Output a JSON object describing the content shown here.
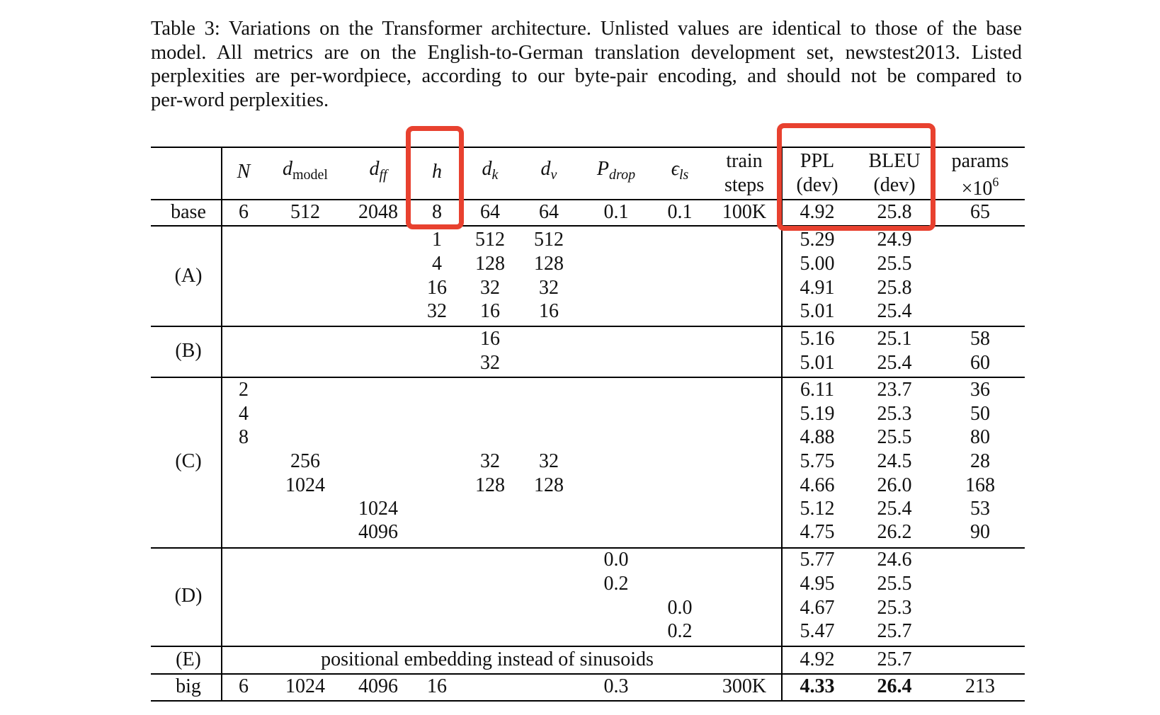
{
  "caption": {
    "line1": "Table 3: Variations on the Transformer architecture. Unlisted values are identical to those of the base",
    "line2": "model. All metrics are on the English-to-German translation development set, newstest2013. Listed",
    "line3": "perplexities are per-wordpiece, according to our byte-pair encoding, and should not be compared to",
    "line4": "per-word perplexities."
  },
  "header": {
    "N": "N",
    "d_model_main": "d",
    "d_model_sub": "model",
    "d_ff_main": "d",
    "d_ff_sub": "ff",
    "h": "h",
    "d_k_main": "d",
    "d_k_sub": "k",
    "d_v_main": "d",
    "d_v_sub": "v",
    "p_drop_main": "P",
    "p_drop_sub": "drop",
    "eps_main": "ϵ",
    "eps_sub": "ls",
    "train_line1": "train",
    "train_line2": "steps",
    "ppl_line1": "PPL",
    "ppl_line2": "(dev)",
    "bleu_line1": "BLEU",
    "bleu_line2": "(dev)",
    "params_line1": "params",
    "params_line2_prefix": "×10",
    "params_line2_exp": "6"
  },
  "rows": {
    "base": {
      "label": "base",
      "N": "6",
      "d_model": "512",
      "d_ff": "2048",
      "h": "8",
      "d_k": "64",
      "d_v": "64",
      "p_drop": "0.1",
      "eps": "0.1",
      "train": "100K",
      "ppl": "4.92",
      "bleu": "25.8",
      "params": "65"
    },
    "A": {
      "label": "(A)",
      "rows": [
        {
          "h": "1",
          "d_k": "512",
          "d_v": "512",
          "ppl": "5.29",
          "bleu": "24.9"
        },
        {
          "h": "4",
          "d_k": "128",
          "d_v": "128",
          "ppl": "5.00",
          "bleu": "25.5"
        },
        {
          "h": "16",
          "d_k": "32",
          "d_v": "32",
          "ppl": "4.91",
          "bleu": "25.8"
        },
        {
          "h": "32",
          "d_k": "16",
          "d_v": "16",
          "ppl": "5.01",
          "bleu": "25.4"
        }
      ]
    },
    "B": {
      "label": "(B)",
      "rows": [
        {
          "d_k": "16",
          "ppl": "5.16",
          "bleu": "25.1",
          "params": "58"
        },
        {
          "d_k": "32",
          "ppl": "5.01",
          "bleu": "25.4",
          "params": "60"
        }
      ]
    },
    "C": {
      "label": "(C)",
      "rows": [
        {
          "N": "2",
          "ppl": "6.11",
          "bleu": "23.7",
          "params": "36"
        },
        {
          "N": "4",
          "ppl": "5.19",
          "bleu": "25.3",
          "params": "50"
        },
        {
          "N": "8",
          "ppl": "4.88",
          "bleu": "25.5",
          "params": "80"
        },
        {
          "d_model": "256",
          "d_k": "32",
          "d_v": "32",
          "ppl": "5.75",
          "bleu": "24.5",
          "params": "28"
        },
        {
          "d_model": "1024",
          "d_k": "128",
          "d_v": "128",
          "ppl": "4.66",
          "bleu": "26.0",
          "params": "168"
        },
        {
          "d_ff": "1024",
          "ppl": "5.12",
          "bleu": "25.4",
          "params": "53"
        },
        {
          "d_ff": "4096",
          "ppl": "4.75",
          "bleu": "26.2",
          "params": "90"
        }
      ]
    },
    "D": {
      "label": "(D)",
      "rows": [
        {
          "p_drop": "0.0",
          "ppl": "5.77",
          "bleu": "24.6"
        },
        {
          "p_drop": "0.2",
          "ppl": "4.95",
          "bleu": "25.5"
        },
        {
          "eps": "0.0",
          "ppl": "4.67",
          "bleu": "25.3"
        },
        {
          "eps": "0.2",
          "ppl": "5.47",
          "bleu": "25.7"
        }
      ]
    },
    "E": {
      "label": "(E)",
      "note": "positional embedding instead of sinusoids",
      "ppl": "4.92",
      "bleu": "25.7"
    },
    "big": {
      "label": "big",
      "N": "6",
      "d_model": "1024",
      "d_ff": "4096",
      "h": "16",
      "p_drop": "0.3",
      "train": "300K",
      "ppl": "4.33",
      "bleu": "26.4",
      "params": "213"
    }
  },
  "colors": {
    "highlight": "#e8412f"
  }
}
